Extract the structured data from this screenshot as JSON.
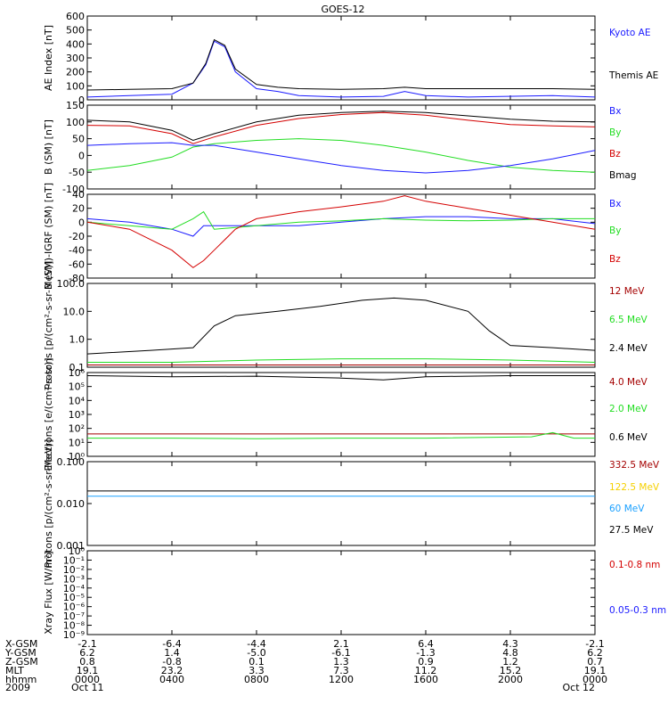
{
  "title": "GOES-12",
  "colors": {
    "black": "#000000",
    "blue": "#1a1aff",
    "red": "#d40000",
    "green": "#22dd22",
    "darkred": "#a40000",
    "gold": "#f5d000",
    "cyan": "#1aa0ff"
  },
  "x_ticks": [
    "0000",
    "0400",
    "0800",
    "1200",
    "1600",
    "2000",
    "0000"
  ],
  "chart_data": [
    {
      "type": "line",
      "id": "ae",
      "ylabel": "AE Index [nT]",
      "ylim": [
        0,
        600
      ],
      "yticks": [
        "0",
        "100",
        "200",
        "300",
        "400",
        "500",
        "600"
      ],
      "legend": [
        {
          "name": "Kyoto AE",
          "color": "#1a1aff"
        },
        {
          "name": "Themis AE",
          "color": "#000000"
        }
      ],
      "series": [
        {
          "name": "Kyoto AE",
          "color": "#1a1aff",
          "points": [
            [
              0,
              20
            ],
            [
              2,
              30
            ],
            [
              4,
              40
            ],
            [
              5,
              120
            ],
            [
              5.6,
              250
            ],
            [
              6,
              420
            ],
            [
              6.5,
              380
            ],
            [
              7,
              200
            ],
            [
              8,
              80
            ],
            [
              9,
              60
            ],
            [
              10,
              30
            ],
            [
              12,
              20
            ],
            [
              14,
              25
            ],
            [
              15,
              60
            ],
            [
              16,
              30
            ],
            [
              18,
              20
            ],
            [
              22,
              30
            ],
            [
              24,
              20
            ]
          ]
        },
        {
          "name": "Themis AE",
          "color": "#000000",
          "points": [
            [
              0,
              70
            ],
            [
              2,
              75
            ],
            [
              4,
              80
            ],
            [
              5,
              120
            ],
            [
              5.6,
              260
            ],
            [
              6,
              430
            ],
            [
              6.5,
              390
            ],
            [
              7,
              220
            ],
            [
              8,
              110
            ],
            [
              9,
              90
            ],
            [
              10,
              80
            ],
            [
              12,
              75
            ],
            [
              14,
              80
            ],
            [
              15,
              90
            ],
            [
              16,
              80
            ],
            [
              18,
              80
            ],
            [
              22,
              80
            ],
            [
              24,
              75
            ]
          ]
        }
      ]
    },
    {
      "type": "line",
      "id": "bsm",
      "ylabel": "B (SM) [nT]",
      "ylim": [
        -100,
        150
      ],
      "yticks": [
        "-100",
        "-50",
        "0",
        "50",
        "100",
        "150"
      ],
      "legend": [
        {
          "name": "Bx",
          "color": "#1a1aff"
        },
        {
          "name": "By",
          "color": "#22dd22"
        },
        {
          "name": "Bz",
          "color": "#d40000"
        },
        {
          "name": "Bmag",
          "color": "#000000"
        }
      ],
      "series": [
        {
          "name": "Bmag",
          "color": "#000000",
          "points": [
            [
              0,
              105
            ],
            [
              2,
              100
            ],
            [
              4,
              75
            ],
            [
              5,
              45
            ],
            [
              6,
              65
            ],
            [
              8,
              100
            ],
            [
              10,
              120
            ],
            [
              12,
              128
            ],
            [
              14,
              132
            ],
            [
              16,
              128
            ],
            [
              18,
              118
            ],
            [
              20,
              108
            ],
            [
              22,
              102
            ],
            [
              24,
              100
            ]
          ]
        },
        {
          "name": "Bz",
          "color": "#d40000",
          "points": [
            [
              0,
              90
            ],
            [
              2,
              88
            ],
            [
              4,
              65
            ],
            [
              5,
              35
            ],
            [
              6,
              55
            ],
            [
              8,
              90
            ],
            [
              10,
              110
            ],
            [
              12,
              122
            ],
            [
              14,
              128
            ],
            [
              16,
              120
            ],
            [
              18,
              105
            ],
            [
              20,
              92
            ],
            [
              22,
              88
            ],
            [
              24,
              85
            ]
          ]
        },
        {
          "name": "By",
          "color": "#22dd22",
          "points": [
            [
              0,
              -45
            ],
            [
              2,
              -30
            ],
            [
              4,
              -5
            ],
            [
              5,
              25
            ],
            [
              6,
              35
            ],
            [
              8,
              45
            ],
            [
              10,
              50
            ],
            [
              12,
              45
            ],
            [
              14,
              30
            ],
            [
              16,
              10
            ],
            [
              18,
              -15
            ],
            [
              20,
              -35
            ],
            [
              22,
              -45
            ],
            [
              24,
              -50
            ]
          ]
        },
        {
          "name": "Bx",
          "color": "#1a1aff",
          "points": [
            [
              0,
              30
            ],
            [
              2,
              35
            ],
            [
              4,
              38
            ],
            [
              5,
              30
            ],
            [
              6,
              30
            ],
            [
              8,
              10
            ],
            [
              10,
              -10
            ],
            [
              12,
              -30
            ],
            [
              14,
              -45
            ],
            [
              16,
              -52
            ],
            [
              18,
              -45
            ],
            [
              20,
              -30
            ],
            [
              22,
              -10
            ],
            [
              24,
              15
            ]
          ]
        }
      ]
    },
    {
      "type": "line",
      "id": "bdiff",
      "ylabel": "B (SM)-IGRF (SM) [nT]",
      "ylim": [
        -80,
        40
      ],
      "yticks": [
        "-80",
        "-60",
        "-40",
        "-20",
        "0",
        "20",
        "40"
      ],
      "legend": [
        {
          "name": "Bx",
          "color": "#1a1aff"
        },
        {
          "name": "By",
          "color": "#22dd22"
        },
        {
          "name": "Bz",
          "color": "#d40000"
        }
      ],
      "series": [
        {
          "name": "Bx",
          "color": "#1a1aff",
          "points": [
            [
              0,
              5
            ],
            [
              2,
              0
            ],
            [
              4,
              -10
            ],
            [
              5,
              -20
            ],
            [
              5.5,
              -5
            ],
            [
              6,
              -5
            ],
            [
              8,
              -5
            ],
            [
              10,
              -5
            ],
            [
              12,
              0
            ],
            [
              14,
              5
            ],
            [
              16,
              8
            ],
            [
              18,
              8
            ],
            [
              20,
              5
            ],
            [
              22,
              5
            ],
            [
              24,
              -2
            ]
          ]
        },
        {
          "name": "By",
          "color": "#22dd22",
          "points": [
            [
              0,
              0
            ],
            [
              2,
              -5
            ],
            [
              4,
              -10
            ],
            [
              5,
              5
            ],
            [
              5.5,
              15
            ],
            [
              6,
              -10
            ],
            [
              8,
              -5
            ],
            [
              10,
              0
            ],
            [
              12,
              2
            ],
            [
              14,
              5
            ],
            [
              16,
              3
            ],
            [
              18,
              2
            ],
            [
              20,
              3
            ],
            [
              22,
              5
            ],
            [
              24,
              5
            ]
          ]
        },
        {
          "name": "Bz",
          "color": "#d40000",
          "points": [
            [
              0,
              0
            ],
            [
              2,
              -10
            ],
            [
              4,
              -40
            ],
            [
              5,
              -65
            ],
            [
              5.5,
              -55
            ],
            [
              6,
              -40
            ],
            [
              7,
              -10
            ],
            [
              8,
              5
            ],
            [
              10,
              15
            ],
            [
              12,
              22
            ],
            [
              14,
              30
            ],
            [
              15,
              38
            ],
            [
              16,
              30
            ],
            [
              18,
              20
            ],
            [
              20,
              10
            ],
            [
              22,
              0
            ],
            [
              24,
              -10
            ]
          ]
        }
      ]
    },
    {
      "type": "line",
      "id": "protons_low",
      "log": true,
      "ylabel": "Protons [p/(cm²-s-sr-MeV)]",
      "ylim": [
        0.1,
        100
      ],
      "yticks": [
        "0.1",
        "1.0",
        "10.0",
        "100.0"
      ],
      "legend": [
        {
          "name": "12 MeV",
          "color": "#a40000"
        },
        {
          "name": "6.5 MeV",
          "color": "#22dd22"
        },
        {
          "name": "2.4 MeV",
          "color": "#000000"
        }
      ],
      "series": [
        {
          "name": "2.4 MeV",
          "color": "#000000",
          "points": [
            [
              0,
              0.3
            ],
            [
              3,
              0.4
            ],
            [
              5,
              0.5
            ],
            [
              6,
              3
            ],
            [
              7,
              7
            ],
            [
              9,
              10
            ],
            [
              11,
              15
            ],
            [
              13,
              25
            ],
            [
              14.5,
              30
            ],
            [
              16,
              25
            ],
            [
              18,
              10
            ],
            [
              19,
              2
            ],
            [
              20,
              0.6
            ],
            [
              22,
              0.5
            ],
            [
              24,
              0.4
            ]
          ]
        },
        {
          "name": "6.5 MeV",
          "color": "#22dd22",
          "points": [
            [
              0,
              0.15
            ],
            [
              4,
              0.15
            ],
            [
              8,
              0.18
            ],
            [
              12,
              0.2
            ],
            [
              16,
              0.2
            ],
            [
              20,
              0.18
            ],
            [
              24,
              0.15
            ]
          ]
        },
        {
          "name": "12 MeV",
          "color": "#a40000",
          "points": [
            [
              0,
              0.12
            ],
            [
              6,
              0.12
            ],
            [
              12,
              0.12
            ],
            [
              18,
              0.12
            ],
            [
              24,
              0.12
            ]
          ]
        }
      ]
    },
    {
      "type": "line",
      "id": "electrons",
      "log": true,
      "ylabel": "Electrons [e/(cm²-s-sr)]",
      "ylim": [
        1,
        1000000
      ],
      "yticks": [
        "10⁰",
        "10¹",
        "10²",
        "10³",
        "10⁴",
        "10⁵",
        "10⁶"
      ],
      "legend": [
        {
          "name": "4.0 MeV",
          "color": "#a40000"
        },
        {
          "name": "2.0 MeV",
          "color": "#22dd22"
        },
        {
          "name": "0.6 MeV",
          "color": "#000000"
        }
      ],
      "series": [
        {
          "name": "0.6 MeV",
          "color": "#000000",
          "points": [
            [
              0,
              600000
            ],
            [
              4,
              500000
            ],
            [
              8,
              550000
            ],
            [
              12,
              400000
            ],
            [
              14,
              300000
            ],
            [
              16,
              500000
            ],
            [
              20,
              600000
            ],
            [
              24,
              600000
            ]
          ]
        },
        {
          "name": "4.0 MeV",
          "color": "#a40000",
          "points": [
            [
              0,
              40
            ],
            [
              6,
              40
            ],
            [
              12,
              40
            ],
            [
              18,
              40
            ],
            [
              24,
              40
            ]
          ]
        },
        {
          "name": "2.0 MeV",
          "color": "#22dd22",
          "points": [
            [
              0,
              20
            ],
            [
              4,
              20
            ],
            [
              8,
              18
            ],
            [
              12,
              20
            ],
            [
              16,
              20
            ],
            [
              21,
              25
            ],
            [
              22,
              50
            ],
            [
              23,
              20
            ],
            [
              24,
              20
            ]
          ]
        }
      ]
    },
    {
      "type": "line",
      "id": "protons_high",
      "log": true,
      "ylabel": "Protons [p/(cm²-s-sr-MeV)]",
      "ylim": [
        0.001,
        0.1
      ],
      "yticks": [
        "0.001",
        "0.010",
        "0.100"
      ],
      "legend": [
        {
          "name": "332.5 MeV",
          "color": "#a40000"
        },
        {
          "name": "122.5 MeV",
          "color": "#f5d000"
        },
        {
          "name": "60 MeV",
          "color": "#1aa0ff"
        },
        {
          "name": "27.5 MeV",
          "color": "#000000"
        }
      ],
      "series": [
        {
          "name": "27.5 MeV",
          "color": "#000000",
          "points": [
            [
              0,
              0.02
            ],
            [
              6,
              0.02
            ],
            [
              12,
              0.02
            ],
            [
              18,
              0.02
            ],
            [
              24,
              0.02
            ]
          ]
        },
        {
          "name": "60 MeV",
          "color": "#1aa0ff",
          "points": [
            [
              0,
              0.015
            ],
            [
              6,
              0.015
            ],
            [
              12,
              0.015
            ],
            [
              18,
              0.015
            ],
            [
              24,
              0.015
            ]
          ]
        }
      ]
    },
    {
      "type": "line",
      "id": "xray",
      "log": true,
      "ylabel": "Xray Flux [W/m²]",
      "ylim": [
        1e-09,
        1
      ],
      "yticks": [
        "10⁻⁹",
        "10⁻⁸",
        "10⁻⁷",
        "10⁻⁶",
        "10⁻⁵",
        "10⁻⁴",
        "10⁻³",
        "10⁻²",
        "10⁻¹",
        "10⁰"
      ],
      "legend": [
        {
          "name": "0.1-0.8 nm",
          "color": "#d40000"
        },
        {
          "name": "0.05-0.3 nm",
          "color": "#1a1aff"
        }
      ],
      "series": []
    }
  ],
  "footer": {
    "rows": [
      {
        "label": "X-GSM",
        "values": [
          "-2.1",
          "-6.4",
          "-4.4",
          "2.1",
          "6.4",
          "4.3",
          "-2.1"
        ]
      },
      {
        "label": "Y-GSM",
        "values": [
          "6.2",
          "1.4",
          "-5.0",
          "-6.1",
          "-1.3",
          "4.8",
          "6.2"
        ]
      },
      {
        "label": "Z-GSM",
        "values": [
          "0.8",
          "-0.8",
          "0.1",
          "1.3",
          "0.9",
          "1.2",
          "0.7"
        ]
      },
      {
        "label": "MLT",
        "values": [
          "19.1",
          "23.2",
          "3.3",
          "7.3",
          "11.2",
          "15.2",
          "19.1"
        ]
      },
      {
        "label": "hhmm",
        "values": [
          "0000",
          "0400",
          "0800",
          "1200",
          "1600",
          "2000",
          "0000"
        ]
      }
    ],
    "year": "2009",
    "date_start": "Oct 11",
    "date_end": "Oct 12"
  }
}
